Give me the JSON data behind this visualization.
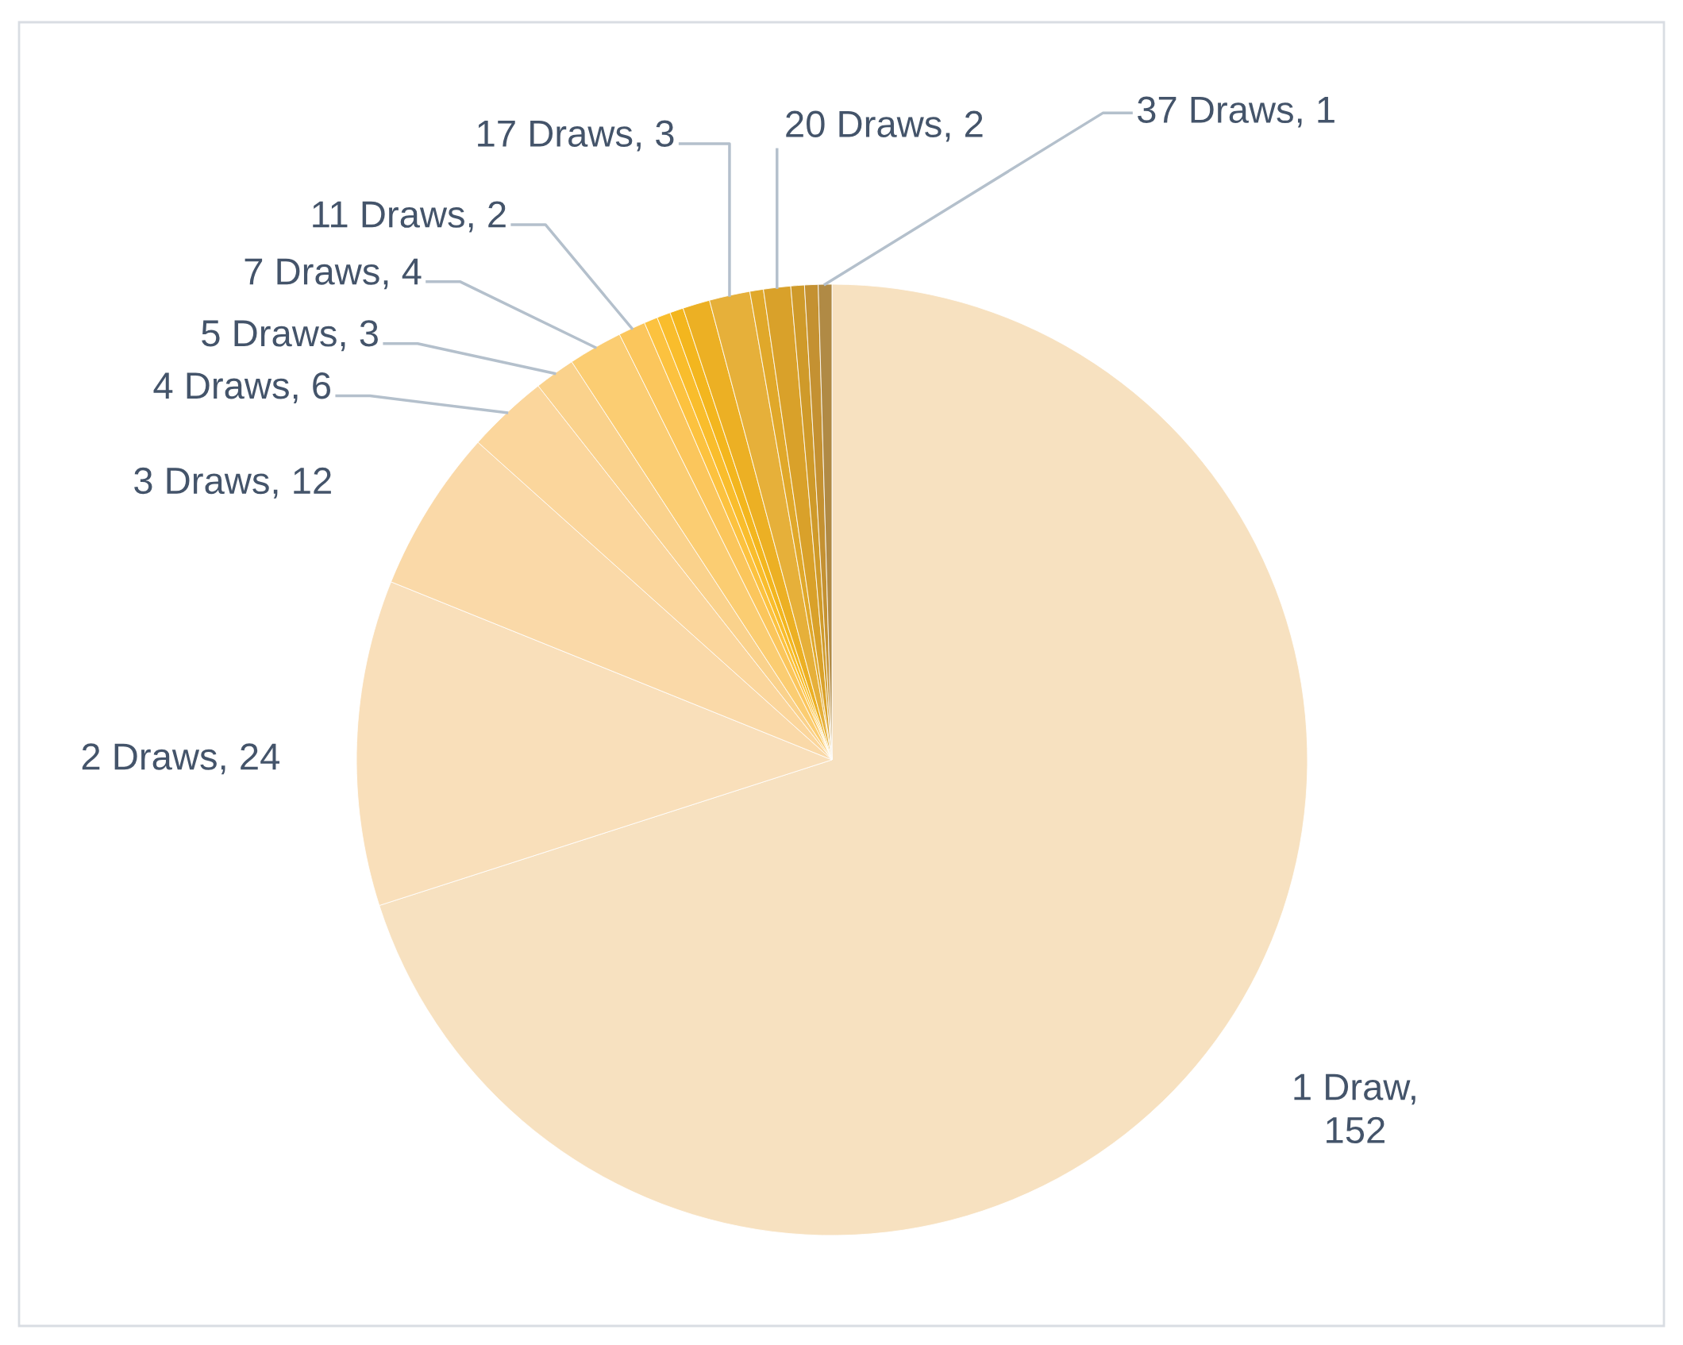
{
  "chart_data": {
    "type": "pie",
    "categories": [
      "1 Draw, 152",
      "2 Draws, 24",
      "3 Draws, 12",
      "4 Draws, 6",
      "5 Draws, 3",
      "7 Draws, 4",
      "11 Draws, 2",
      null,
      null,
      null,
      null,
      "17 Draws, 3",
      null,
      "20 Draws, 2",
      null,
      null,
      "37 Draws, 1"
    ],
    "values": [
      152,
      24,
      12,
      6,
      3,
      4,
      2,
      1,
      1,
      1,
      2,
      3,
      1,
      2,
      1,
      1,
      1
    ],
    "colors": [
      "#f7e1c0",
      "#f9dfba",
      "#fad9a8",
      "#fbd69c",
      "#fad28c",
      "#fbcd72",
      "#fbc65c",
      "#fcc23f",
      "#f9bd2c",
      "#f3b61e",
      "#ecb024",
      "#e6b03a",
      "#e0a82a",
      "#d9a12a",
      "#cf9a2a",
      "#c49132",
      "#b08a45"
    ]
  }
}
